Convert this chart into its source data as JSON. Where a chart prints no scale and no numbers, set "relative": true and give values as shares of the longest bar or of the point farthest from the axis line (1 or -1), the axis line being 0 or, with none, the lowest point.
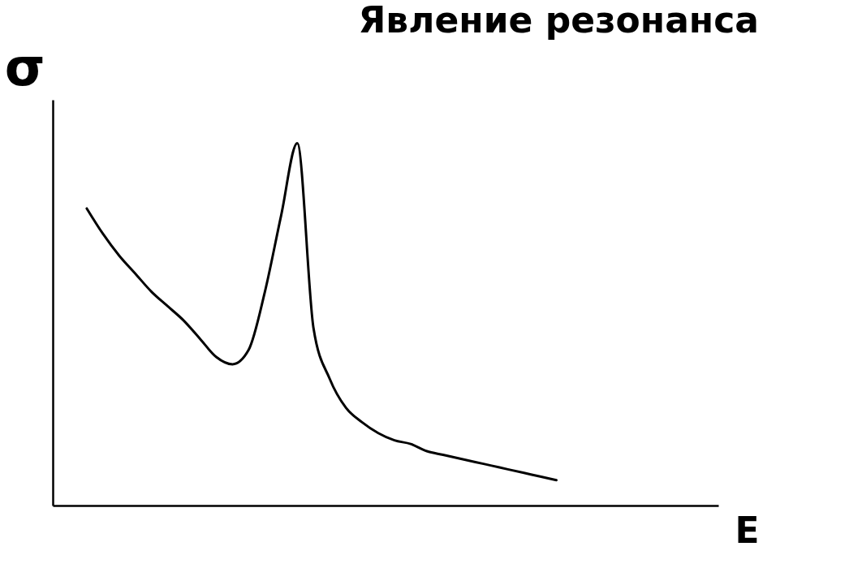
{
  "chart_data": {
    "type": "line",
    "title": "Явление резонанса",
    "xlabel": "E",
    "ylabel": "σ",
    "relative": true,
    "color": "#000000",
    "grid": false,
    "marker": "none",
    "line_style": "solid",
    "tick_labels": false,
    "categories": [
      null,
      null,
      null,
      null,
      null,
      null,
      null,
      null,
      null,
      null,
      null,
      null,
      null,
      null,
      null,
      null,
      null,
      null,
      null,
      null,
      null,
      null,
      null,
      null,
      null,
      null,
      null,
      null,
      null,
      null
    ],
    "values": [
      0.82,
      0.75,
      0.69,
      0.64,
      0.59,
      0.55,
      0.51,
      0.46,
      0.41,
      0.39,
      0.43,
      0.59,
      0.8,
      1.0,
      0.49,
      0.35,
      0.27,
      0.23,
      0.2,
      0.18,
      0.17,
      0.15,
      0.14,
      0.13,
      0.12,
      0.11,
      0.1,
      0.09,
      0.08,
      0.07
    ]
  }
}
